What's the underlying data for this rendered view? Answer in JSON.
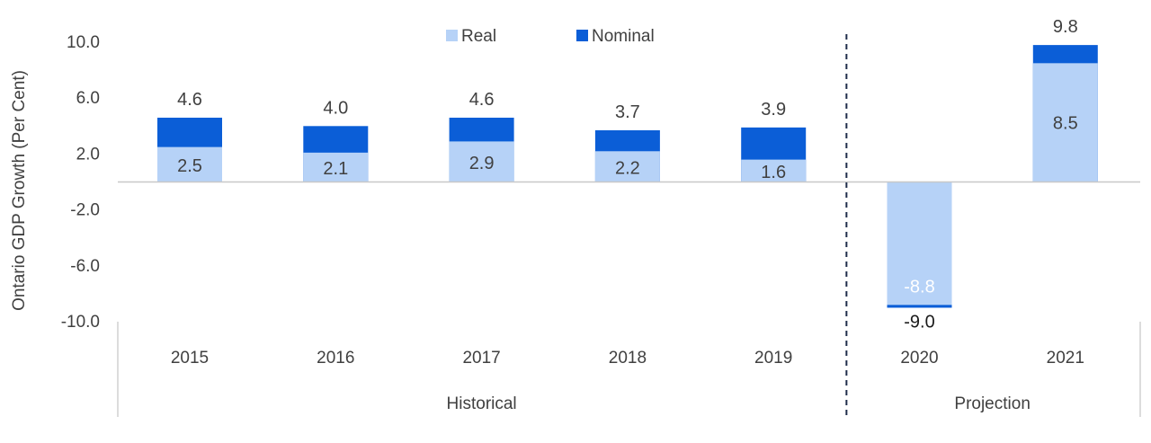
{
  "chart_data": {
    "type": "bar",
    "stacked": "overlay",
    "ylabel": "Ontario GDP Growth (Per Cent)",
    "ylim": [
      -10,
      10
    ],
    "yticks": [
      "10.0",
      "6.0",
      "2.0",
      "-2.0",
      "-6.0",
      "-10.0"
    ],
    "categories": [
      "2015",
      "2016",
      "2017",
      "2018",
      "2019",
      "2020",
      "2021"
    ],
    "groups": [
      {
        "label": "Historical",
        "categories": [
          "2015",
          "2016",
          "2017",
          "2018",
          "2019"
        ]
      },
      {
        "label": "Projection",
        "categories": [
          "2020",
          "2021"
        ]
      }
    ],
    "series": [
      {
        "name": "Real",
        "color": "#b6d2f7",
        "values": [
          2.5,
          2.1,
          2.9,
          2.2,
          1.6,
          -8.8,
          8.5
        ],
        "labels": [
          "2.5",
          "2.1",
          "2.9",
          "2.2",
          "1.6",
          "-8.8",
          "8.5"
        ]
      },
      {
        "name": "Nominal",
        "color": "#0b5ed7",
        "values": [
          4.6,
          4.0,
          4.6,
          3.7,
          3.9,
          -9.0,
          9.8
        ],
        "labels": [
          "4.6",
          "4.0",
          "4.6",
          "3.7",
          "3.9",
          "-9.0",
          "9.8"
        ]
      }
    ],
    "legend": "top-center",
    "grid": false,
    "divider": "dashed line between 2019 and 2020"
  }
}
